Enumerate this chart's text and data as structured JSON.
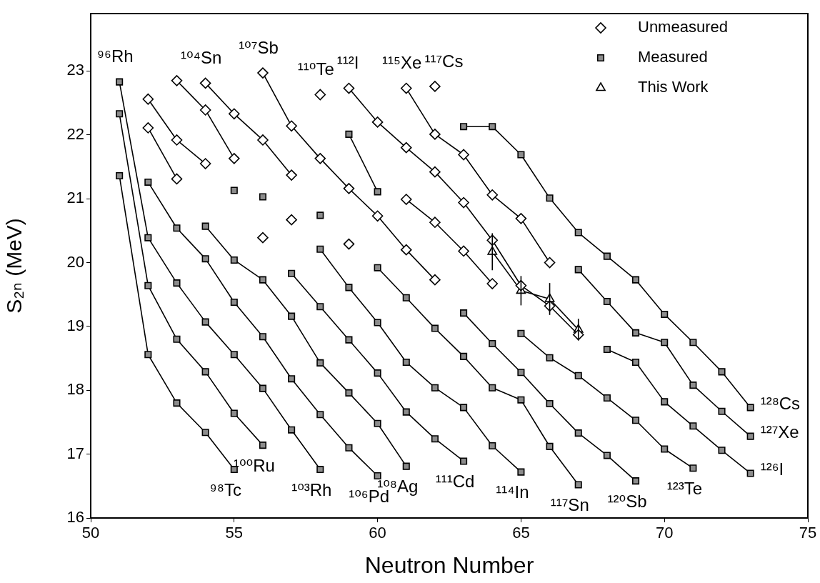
{
  "chart_data": {
    "type": "line",
    "xlabel": "Neutron Number",
    "ylabel": "S₂ₙ (MeV)",
    "xlim": [
      50,
      75
    ],
    "ylim": [
      16,
      23.9
    ],
    "xticks": [
      50,
      55,
      60,
      65,
      70,
      75
    ],
    "yticks": [
      16,
      17,
      18,
      19,
      20,
      21,
      22,
      23
    ],
    "legend": "top right",
    "line_style": "solid",
    "series": [
      {
        "name": "Unmeasured",
        "marker": "diamond",
        "color": "#ffffff",
        "x": [
          52,
          53,
          54
        ],
        "values": [
          22.56,
          21.92,
          21.55
        ]
      },
      {
        "marker": "diamond",
        "color": "#ffffff",
        "x": [
          52,
          53
        ],
        "values": [
          22.11,
          21.31
        ]
      },
      {
        "marker": "diamond",
        "color": "#ffffff",
        "x": [
          53,
          54,
          55
        ],
        "values": [
          22.85,
          22.39,
          21.63
        ]
      },
      {
        "marker": "diamond",
        "color": "#ffffff",
        "x": [
          54,
          55,
          56,
          57
        ],
        "values": [
          22.81,
          22.33,
          21.92,
          21.37
        ]
      },
      {
        "marker": "diamond",
        "color": "#ffffff",
        "x": [
          56,
          57,
          58,
          59,
          60,
          61,
          62
        ],
        "values": [
          22.97,
          22.14,
          21.63,
          21.16,
          20.73,
          20.2,
          19.73
        ]
      },
      {
        "marker": "diamond",
        "color": "#ffffff",
        "x": [
          56
        ],
        "values": [
          20.39
        ]
      },
      {
        "marker": "diamond",
        "color": "#ffffff",
        "x": [
          57
        ],
        "values": [
          20.67
        ]
      },
      {
        "marker": "diamond",
        "color": "#ffffff",
        "x": [
          58
        ],
        "values": [
          22.63
        ]
      },
      {
        "marker": "diamond",
        "color": "#ffffff",
        "x": [
          59
        ],
        "values": [
          20.29
        ]
      },
      {
        "marker": "diamond",
        "color": "#ffffff",
        "x": [
          62
        ],
        "values": [
          22.76
        ]
      },
      {
        "marker": "diamond",
        "color": "#ffffff",
        "x": [
          59,
          60,
          61,
          62,
          63,
          64,
          65,
          66,
          67
        ],
        "values": [
          22.73,
          22.2,
          21.8,
          21.42,
          20.94,
          20.35,
          19.64,
          19.32,
          18.87
        ]
      },
      {
        "marker": "diamond",
        "color": "#ffffff",
        "x": [
          61,
          62,
          63,
          64,
          65,
          66
        ],
        "values": [
          22.73,
          22.01,
          21.69,
          21.06,
          20.69,
          20.0
        ]
      },
      {
        "marker": "diamond",
        "color": "#ffffff",
        "x": [
          61,
          62,
          63,
          64
        ],
        "values": [
          20.99,
          20.63,
          20.18,
          19.67
        ]
      },
      {
        "name": "Measured",
        "marker": "square",
        "color": "#8c8c8c",
        "x": [
          51,
          52,
          53,
          54,
          55
        ],
        "values": [
          21.36,
          18.56,
          17.8,
          17.34,
          16.76
        ]
      },
      {
        "marker": "square",
        "color": "#8c8c8c",
        "x": [
          51,
          52,
          53,
          54,
          55,
          56
        ],
        "values": [
          22.33,
          19.64,
          18.8,
          18.29,
          17.64,
          17.14
        ]
      },
      {
        "marker": "square",
        "color": "#8c8c8c",
        "x": [
          51,
          52,
          53,
          54,
          55,
          56,
          57,
          58
        ],
        "values": [
          22.83,
          20.39,
          19.68,
          19.07,
          18.56,
          18.03,
          17.38,
          16.76
        ]
      },
      {
        "marker": "square",
        "color": "#8c8c8c",
        "x": [
          52,
          53,
          54,
          55,
          56,
          57,
          58,
          59,
          60
        ],
        "values": [
          21.26,
          20.54,
          20.06,
          19.38,
          18.84,
          18.18,
          17.62,
          17.1,
          16.66
        ]
      },
      {
        "marker": "square",
        "color": "#8c8c8c",
        "x": [
          54,
          55,
          56,
          57,
          58,
          59,
          60,
          61
        ],
        "values": [
          20.57,
          20.04,
          19.73,
          19.16,
          18.43,
          17.96,
          17.48,
          16.81
        ]
      },
      {
        "marker": "square",
        "color": "#8c8c8c",
        "x": [
          57,
          58,
          59,
          60,
          61,
          62,
          63
        ],
        "values": [
          19.83,
          19.31,
          18.79,
          18.27,
          17.66,
          17.24,
          16.89
        ]
      },
      {
        "marker": "square",
        "color": "#8c8c8c",
        "x": [
          58,
          59,
          60,
          61,
          62,
          63,
          64,
          65
        ],
        "values": [
          20.21,
          19.61,
          19.06,
          18.44,
          18.04,
          17.73,
          17.13,
          16.72
        ]
      },
      {
        "marker": "square",
        "color": "#8c8c8c",
        "x": [
          60,
          61,
          62,
          63,
          64,
          65,
          66,
          67
        ],
        "values": [
          19.92,
          19.45,
          18.97,
          18.53,
          18.04,
          17.85,
          17.12,
          16.52
        ]
      },
      {
        "marker": "square",
        "color": "#8c8c8c",
        "x": [
          63,
          64,
          65,
          66,
          67,
          68,
          69
        ],
        "values": [
          19.21,
          18.73,
          18.28,
          17.79,
          17.33,
          16.98,
          16.58
        ]
      },
      {
        "marker": "square",
        "color": "#8c8c8c",
        "x": [
          65,
          66,
          67,
          68,
          69,
          70,
          71
        ],
        "values": [
          18.89,
          18.51,
          18.23,
          17.88,
          17.53,
          17.08,
          16.78
        ]
      },
      {
        "marker": "square",
        "color": "#8c8c8c",
        "x": [
          68,
          69,
          70,
          71,
          72,
          73
        ],
        "values": [
          18.64,
          18.44,
          17.82,
          17.44,
          17.06,
          16.7
        ]
      },
      {
        "marker": "square",
        "color": "#8c8c8c",
        "x": [
          67,
          68,
          69,
          70,
          71,
          72,
          73
        ],
        "values": [
          19.89,
          19.39,
          18.9,
          18.75,
          18.08,
          17.67,
          17.28
        ]
      },
      {
        "marker": "square",
        "color": "#8c8c8c",
        "x": [
          63,
          64,
          65,
          66,
          67,
          68,
          69,
          70,
          71,
          72,
          73
        ],
        "values": [
          22.13,
          22.13,
          21.69,
          21.01,
          20.47,
          20.1,
          19.73,
          19.19,
          18.75,
          18.29,
          17.73
        ]
      },
      {
        "marker": "square",
        "color": "#8c8c8c",
        "x": [
          55
        ],
        "values": [
          21.13
        ]
      },
      {
        "marker": "square",
        "color": "#8c8c8c",
        "x": [
          56
        ],
        "values": [
          21.03
        ]
      },
      {
        "marker": "square",
        "color": "#8c8c8c",
        "x": [
          58
        ],
        "values": [
          20.74
        ]
      },
      {
        "marker": "square",
        "color": "#8c8c8c",
        "x": [
          59,
          60
        ],
        "values": [
          22.01,
          21.11
        ]
      },
      {
        "name": "This Work",
        "marker": "triangle",
        "color": "#ffffff",
        "x": [
          64,
          65,
          66,
          67
        ],
        "values": [
          20.17,
          19.56,
          19.43,
          18.95
        ],
        "errors": [
          0.29,
          0.23,
          0.25,
          0.17
        ]
      }
    ],
    "annotations": [
      {
        "text": "⁹⁶Rh",
        "x": 51,
        "y": 22.83
      },
      {
        "text": "¹⁰⁴Sn",
        "x": 54,
        "y": 22.81
      },
      {
        "text": "¹⁰⁷Sb",
        "x": 56,
        "y": 22.97
      },
      {
        "text": "¹¹⁰Te",
        "x": 58,
        "y": 22.63
      },
      {
        "text": "¹¹²I",
        "x": 59,
        "y": 22.73
      },
      {
        "text": "¹¹⁵Xe",
        "x": 61,
        "y": 22.73
      },
      {
        "text": "¹¹⁷Cs",
        "x": 62,
        "y": 22.76
      },
      {
        "text": "⁹⁸Tc",
        "x": 55,
        "y": 16.76
      },
      {
        "text": "¹⁰⁰Ru",
        "x": 56,
        "y": 17.14
      },
      {
        "text": "¹⁰³Rh",
        "x": 58,
        "y": 16.76
      },
      {
        "text": "¹⁰⁶Pd",
        "x": 60,
        "y": 16.66
      },
      {
        "text": "¹⁰⁸Ag",
        "x": 61,
        "y": 16.81
      },
      {
        "text": "¹¹¹Cd",
        "x": 63,
        "y": 16.89
      },
      {
        "text": "¹¹⁴In",
        "x": 65,
        "y": 16.72
      },
      {
        "text": "¹¹⁷Sn",
        "x": 67,
        "y": 16.52
      },
      {
        "text": "¹²⁰Sb",
        "x": 69,
        "y": 16.58
      },
      {
        "text": "¹²³Te",
        "x": 71,
        "y": 16.78
      },
      {
        "text": "¹²⁶I",
        "x": 73,
        "y": 16.7
      },
      {
        "text": "¹²⁷Xe",
        "x": 73,
        "y": 17.28
      },
      {
        "text": "¹²⁸Cs",
        "x": 73,
        "y": 17.73
      }
    ]
  }
}
